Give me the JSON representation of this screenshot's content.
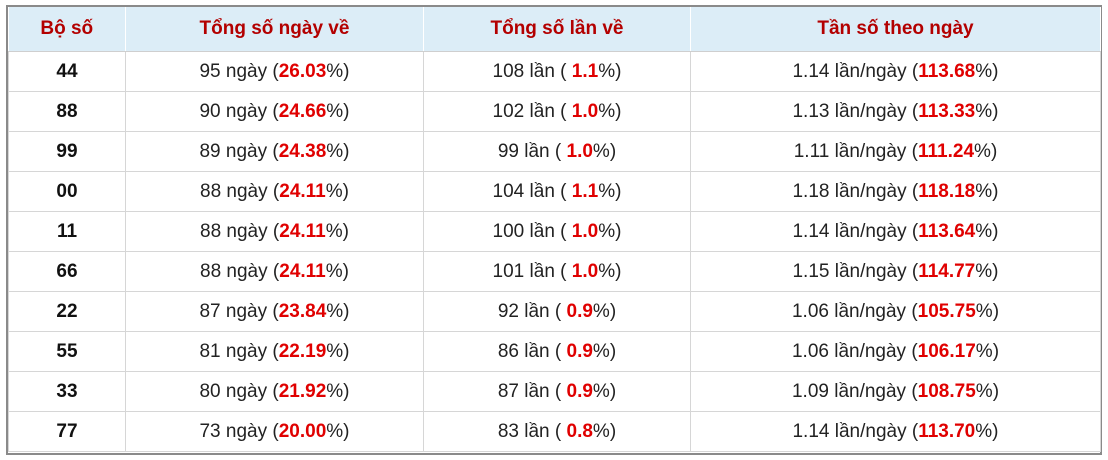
{
  "table": {
    "header": [
      "Bộ số",
      "Tổng số ngày về",
      "Tổng số lần về",
      "Tần số theo ngày"
    ],
    "rows": [
      [
        "44",
        [
          "95 ngày (",
          "26.03",
          "%)"
        ],
        [
          "108 lần ( ",
          "1.1",
          "%)"
        ],
        [
          "1.14 lần/ngày (",
          "113.68",
          "%)"
        ]
      ],
      [
        "88",
        [
          "90 ngày (",
          "24.66",
          "%)"
        ],
        [
          "102 lần ( ",
          "1.0",
          "%)"
        ],
        [
          "1.13 lần/ngày (",
          "113.33",
          "%)"
        ]
      ],
      [
        "99",
        [
          "89 ngày (",
          "24.38",
          "%)"
        ],
        [
          "99 lần ( ",
          "1.0",
          "%)"
        ],
        [
          "1.11 lần/ngày (",
          "111.24",
          "%)"
        ]
      ],
      [
        "00",
        [
          "88 ngày (",
          "24.11",
          "%)"
        ],
        [
          "104 lần ( ",
          "1.1",
          "%)"
        ],
        [
          "1.18 lần/ngày (",
          "118.18",
          "%)"
        ]
      ],
      [
        "11",
        [
          "88 ngày (",
          "24.11",
          "%)"
        ],
        [
          "100 lần ( ",
          "1.0",
          "%)"
        ],
        [
          "1.14 lần/ngày (",
          "113.64",
          "%)"
        ]
      ],
      [
        "66",
        [
          "88 ngày (",
          "24.11",
          "%)"
        ],
        [
          "101 lần ( ",
          "1.0",
          "%)"
        ],
        [
          "1.15 lần/ngày (",
          "114.77",
          "%)"
        ]
      ],
      [
        "22",
        [
          "87 ngày (",
          "23.84",
          "%)"
        ],
        [
          "92 lần ( ",
          "0.9",
          "%)"
        ],
        [
          "1.06 lần/ngày (",
          "105.75",
          "%)"
        ]
      ],
      [
        "55",
        [
          "81 ngày (",
          "22.19",
          "%)"
        ],
        [
          "86 lần ( ",
          "0.9",
          "%)"
        ],
        [
          "1.06 lần/ngày (",
          "106.17",
          "%)"
        ]
      ],
      [
        "33",
        [
          "80 ngày (",
          "21.92",
          "%)"
        ],
        [
          "87 lần ( ",
          "0.9",
          "%)"
        ],
        [
          "1.09 lần/ngày (",
          "108.75",
          "%)"
        ]
      ],
      [
        "77",
        [
          "73 ngày (",
          "20.00",
          "%)"
        ],
        [
          "83 lần ( ",
          "0.8",
          "%)"
        ],
        [
          "1.14 lần/ngày (",
          "113.70",
          "%)"
        ]
      ]
    ]
  }
}
